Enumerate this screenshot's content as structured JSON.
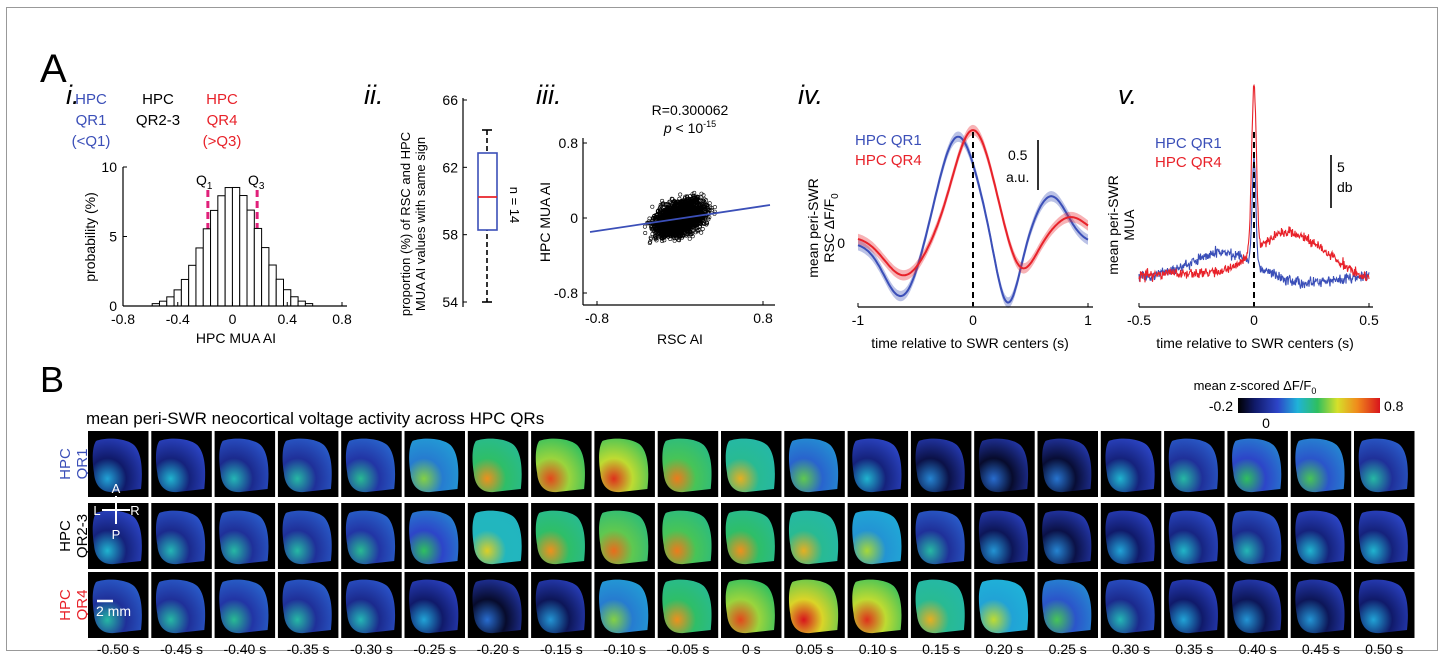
{
  "panel_letters": {
    "A": "A",
    "B": "B"
  },
  "colors": {
    "blue": "#3b4fb8",
    "red": "#e8222a",
    "magenta": "#e0207a",
    "black": "#000000"
  },
  "panel_i": {
    "numeral": "i.",
    "groups": [
      {
        "lines": [
          "HPC",
          "QR1",
          "(<Q1)"
        ],
        "color": "#3b4fb8"
      },
      {
        "lines": [
          "HPC",
          "QR2-3"
        ],
        "color": "#000000"
      },
      {
        "lines": [
          "HPC",
          "QR4",
          "(>Q3)"
        ],
        "color": "#e8222a"
      }
    ],
    "q1_label": {
      "main": "Q",
      "sub": "1"
    },
    "q3_label": {
      "main": "Q",
      "sub": "3"
    },
    "q1_value": -0.18,
    "q3_value": 0.18,
    "ylabel": "probability (%)",
    "xlabel": "HPC MUA AI",
    "xticks": [
      "-0.8",
      "-0.4",
      "0",
      "0.4",
      "0.8"
    ],
    "yticks": [
      "0",
      "5",
      "10"
    ]
  },
  "panel_ii": {
    "numeral": "ii.",
    "ylabel_lines": [
      "proportion (%) of RSC and HPC",
      "MUA AI values with same sign"
    ],
    "yticks": [
      "54",
      "58",
      "62",
      "66"
    ],
    "n_label": "n = 14"
  },
  "panel_iii": {
    "numeral": "iii.",
    "r_label": "R=0.300062",
    "p_label": {
      "p": "p",
      "rest": " < 10",
      "exp": "-15"
    },
    "xlabel": "RSC AI",
    "ylabel": "HPC MUA AI",
    "xticks": [
      "-0.8",
      "0.8"
    ],
    "yticks": [
      "0.8",
      "0",
      "-0.8"
    ]
  },
  "panel_iv": {
    "numeral": "iv.",
    "legend": [
      {
        "label": "HPC QR1",
        "color": "#3b4fb8"
      },
      {
        "label": "HPC QR4",
        "color": "#e8222a"
      }
    ],
    "scale_value": "0.5",
    "scale_unit": "a.u.",
    "ylabel_lines": [
      "mean peri-SWR",
      "RSC ΔF/F"
    ],
    "ylabel_sub": "0",
    "ytick": "0",
    "xticks": [
      "-1",
      "0",
      "1"
    ],
    "xlabel": "time relative to SWR centers (s)"
  },
  "panel_v": {
    "numeral": "v.",
    "legend": [
      {
        "label": "HPC QR1",
        "color": "#3b4fb8"
      },
      {
        "label": "HPC QR4",
        "color": "#e8222a"
      }
    ],
    "scale_value": "5",
    "scale_unit": "db",
    "ylabel_lines": [
      "mean peri-SWR",
      "MUA"
    ],
    "xticks": [
      "-0.5",
      "0",
      "0.5"
    ],
    "xlabel": "time relative to SWR centers (s)"
  },
  "panel_B": {
    "title": "mean peri-SWR neocortical voltage activity across HPC QRs",
    "colorbar_title": {
      "main": "mean z-scored ΔF/F",
      "sub": "0"
    },
    "colorbar_min": "-0.2",
    "colorbar_mid": "0",
    "colorbar_max": "0.8",
    "rows": [
      {
        "lines": [
          "HPC",
          "QR1"
        ],
        "colors": [
          "#3b4fb8",
          "#3b4fb8"
        ]
      },
      {
        "lines": [
          "HPC",
          "QR2-3"
        ],
        "colors": [
          "#000000",
          "#000000"
        ]
      },
      {
        "lines": [
          "HPC",
          "QR4"
        ],
        "colors": [
          "#e8222a",
          "#e8222a"
        ]
      }
    ],
    "orientation": {
      "A": "A",
      "L": "L",
      "R": "R",
      "P": "P"
    },
    "scale_bar": "2 mm",
    "time_labels": [
      "-0.50 s",
      "-0.45 s",
      "-0.40 s",
      "-0.35 s",
      "-0.30 s",
      "-0.25 s",
      "-0.20 s",
      "-0.15 s",
      "-0.10 s",
      "-0.05 s",
      "0 s",
      "0.05 s",
      "0.10 s",
      "0.15 s",
      "0.20 s",
      "0.25 s",
      "0.30 s",
      "0.35 s",
      "0.40 s",
      "0.45 s",
      "0.50 s"
    ],
    "activity": [
      [
        0.12,
        0.15,
        0.18,
        0.2,
        0.22,
        0.35,
        0.55,
        0.65,
        0.68,
        0.58,
        0.5,
        0.32,
        0.15,
        0.08,
        0.05,
        0.06,
        0.15,
        0.2,
        0.28,
        0.3,
        0.2
      ],
      [
        0.15,
        0.18,
        0.2,
        0.2,
        0.22,
        0.28,
        0.45,
        0.55,
        0.6,
        0.58,
        0.55,
        0.5,
        0.38,
        0.2,
        0.1,
        0.08,
        0.12,
        0.16,
        0.18,
        0.15,
        0.15
      ],
      [
        0.2,
        0.2,
        0.22,
        0.2,
        0.18,
        0.12,
        0.05,
        0.1,
        0.35,
        0.55,
        0.65,
        0.72,
        0.68,
        0.5,
        0.4,
        0.3,
        0.18,
        0.12,
        0.1,
        0.1,
        0.12
      ]
    ]
  }
}
